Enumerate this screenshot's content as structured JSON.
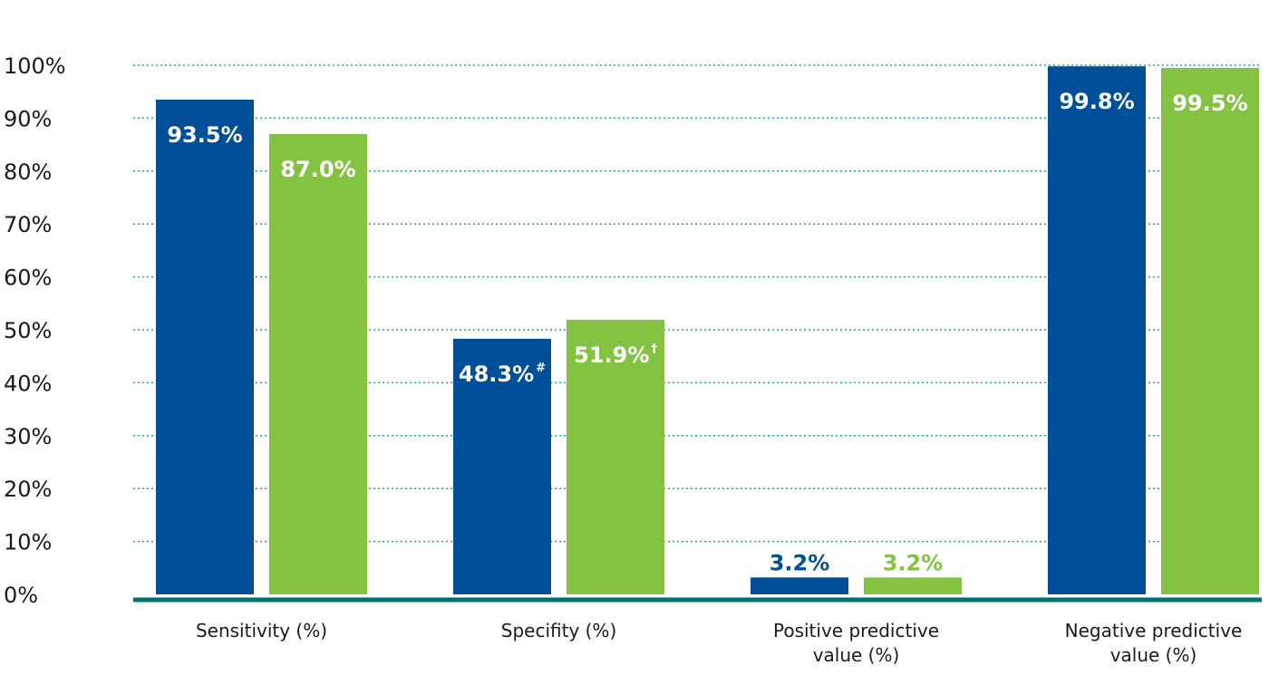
{
  "chart_data": {
    "type": "bar",
    "categories": [
      [
        "Sensitivity (%)"
      ],
      [
        "Specifity (%)"
      ],
      [
        "Positive predictive",
        "value (%)"
      ],
      [
        "Negative predictive",
        "value (%)"
      ]
    ],
    "series": [
      {
        "color": "#004f98",
        "values": [
          93.5,
          48.3,
          3.2,
          99.8
        ],
        "labels": [
          "93.5%",
          "48.3%",
          "3.2%",
          "99.8%"
        ],
        "superscripts": [
          "",
          "#",
          "",
          ""
        ]
      },
      {
        "color": "#84c341",
        "values": [
          87.0,
          51.9,
          3.2,
          99.5
        ],
        "labels": [
          "87.0%",
          "51.9%",
          "3.2%",
          "99.5%"
        ],
        "superscripts": [
          "",
          "†",
          "",
          ""
        ]
      }
    ],
    "y_ticks": [
      "0%",
      "10%",
      "20%",
      "30%",
      "40%",
      "50%",
      "60%",
      "70%",
      "80%",
      "90%",
      "100%"
    ],
    "ylim": [
      0,
      100
    ],
    "grid": true,
    "grid_color": "#1aa59a",
    "baseline_color": "#00746a",
    "legend": false
  }
}
